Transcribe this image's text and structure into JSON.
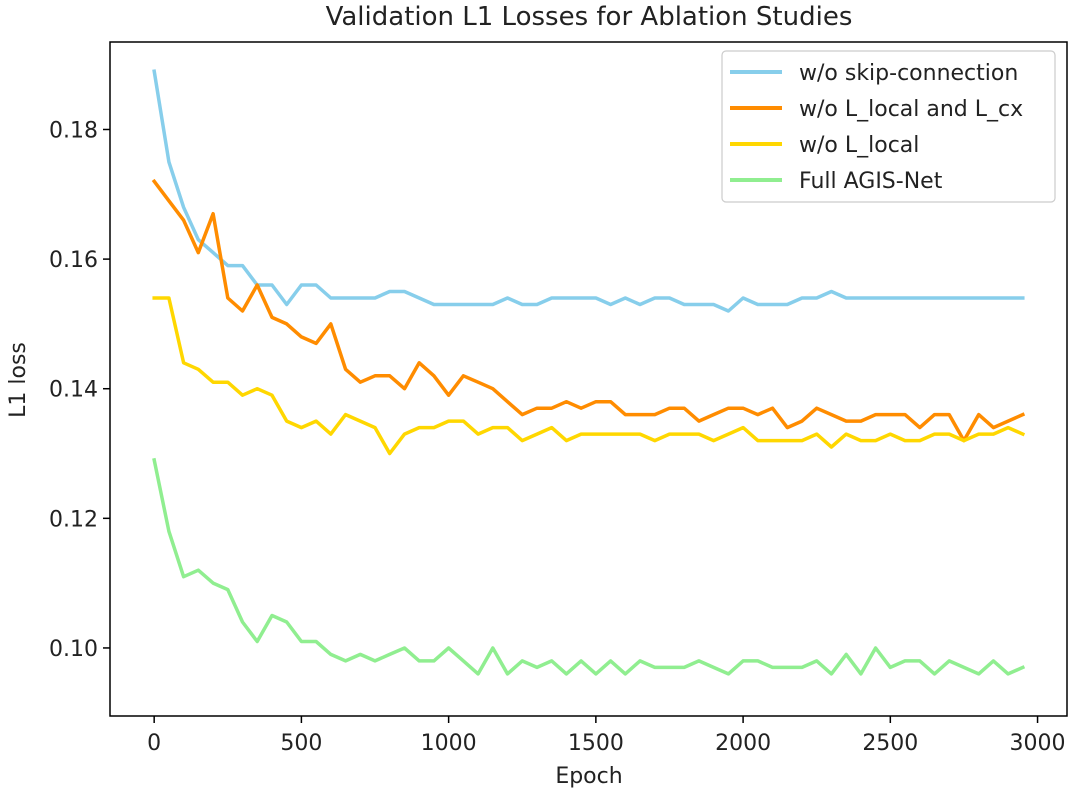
{
  "chart_data": {
    "type": "line",
    "title": "Validation L1 Losses for Ablation Studies",
    "xlabel": "Epoch",
    "ylabel": "L1 loss",
    "xlim": [
      -150,
      3100
    ],
    "ylim": [
      0.0895,
      0.1935
    ],
    "xticks": [
      0,
      500,
      1000,
      1500,
      2000,
      2500,
      3000
    ],
    "xtick_labels": [
      "0",
      "500",
      "1000",
      "1500",
      "2000",
      "2500",
      "3000"
    ],
    "yticks": [
      0.1,
      0.12,
      0.14,
      0.16,
      0.18
    ],
    "ytick_labels": [
      "0.10",
      "0.12",
      "0.14",
      "0.16",
      "0.18"
    ],
    "grid": false,
    "legend_position": "top-right",
    "x": [
      0,
      50,
      100,
      150,
      200,
      250,
      300,
      350,
      400,
      450,
      500,
      550,
      600,
      650,
      700,
      750,
      800,
      850,
      900,
      950,
      1000,
      1050,
      1100,
      1150,
      1200,
      1250,
      1300,
      1350,
      1400,
      1450,
      1500,
      1550,
      1600,
      1650,
      1700,
      1750,
      1800,
      1850,
      1900,
      1950,
      2000,
      2050,
      2100,
      2150,
      2200,
      2250,
      2300,
      2350,
      2400,
      2450,
      2500,
      2550,
      2600,
      2650,
      2700,
      2750,
      2800,
      2850,
      2900,
      2950
    ],
    "series": [
      {
        "name": "w/o skip-connection",
        "color": "#87ceeb",
        "values": [
          0.189,
          0.175,
          0.168,
          0.163,
          0.161,
          0.159,
          0.159,
          0.156,
          0.156,
          0.153,
          0.156,
          0.156,
          0.154,
          0.154,
          0.154,
          0.154,
          0.155,
          0.155,
          0.154,
          0.153,
          0.153,
          0.153,
          0.153,
          0.153,
          0.154,
          0.153,
          0.153,
          0.154,
          0.154,
          0.154,
          0.154,
          0.153,
          0.154,
          0.153,
          0.154,
          0.154,
          0.153,
          0.153,
          0.153,
          0.152,
          0.154,
          0.153,
          0.153,
          0.153,
          0.154,
          0.154,
          0.155,
          0.154,
          0.154,
          0.154,
          0.154,
          0.154,
          0.154,
          0.154,
          0.154,
          0.154,
          0.154,
          0.154,
          0.154,
          0.154
        ]
      },
      {
        "name": "w/o L_local and L_cx",
        "color": "#ff8c00",
        "values": [
          0.172,
          0.169,
          0.166,
          0.161,
          0.167,
          0.154,
          0.152,
          0.156,
          0.151,
          0.15,
          0.148,
          0.147,
          0.15,
          0.143,
          0.141,
          0.142,
          0.142,
          0.14,
          0.144,
          0.142,
          0.139,
          0.142,
          0.141,
          0.14,
          0.138,
          0.136,
          0.137,
          0.137,
          0.138,
          0.137,
          0.138,
          0.138,
          0.136,
          0.136,
          0.136,
          0.137,
          0.137,
          0.135,
          0.136,
          0.137,
          0.137,
          0.136,
          0.137,
          0.134,
          0.135,
          0.137,
          0.136,
          0.135,
          0.135,
          0.136,
          0.136,
          0.136,
          0.134,
          0.136,
          0.136,
          0.132,
          0.136,
          0.134,
          0.135,
          0.136
        ]
      },
      {
        "name": "w/o L_local",
        "color": "#ffd700",
        "values": [
          0.154,
          0.154,
          0.144,
          0.143,
          0.141,
          0.141,
          0.139,
          0.14,
          0.139,
          0.135,
          0.134,
          0.135,
          0.133,
          0.136,
          0.135,
          0.134,
          0.13,
          0.133,
          0.134,
          0.134,
          0.135,
          0.135,
          0.133,
          0.134,
          0.134,
          0.132,
          0.133,
          0.134,
          0.132,
          0.133,
          0.133,
          0.133,
          0.133,
          0.133,
          0.132,
          0.133,
          0.133,
          0.133,
          0.132,
          0.133,
          0.134,
          0.132,
          0.132,
          0.132,
          0.132,
          0.133,
          0.131,
          0.133,
          0.132,
          0.132,
          0.133,
          0.132,
          0.132,
          0.133,
          0.133,
          0.132,
          0.133,
          0.133,
          0.134,
          0.133
        ]
      },
      {
        "name": "Full AGIS-Net",
        "color": "#90ee90",
        "values": [
          0.129,
          0.118,
          0.111,
          0.112,
          0.11,
          0.109,
          0.104,
          0.101,
          0.105,
          0.104,
          0.101,
          0.101,
          0.099,
          0.098,
          0.099,
          0.098,
          0.099,
          0.1,
          0.098,
          0.098,
          0.1,
          0.098,
          0.096,
          0.1,
          0.096,
          0.098,
          0.097,
          0.098,
          0.096,
          0.098,
          0.096,
          0.098,
          0.096,
          0.098,
          0.097,
          0.097,
          0.097,
          0.098,
          0.097,
          0.096,
          0.098,
          0.098,
          0.097,
          0.097,
          0.097,
          0.098,
          0.096,
          0.099,
          0.096,
          0.1,
          0.097,
          0.098,
          0.098,
          0.096,
          0.098,
          0.097,
          0.096,
          0.098,
          0.096,
          0.097
        ]
      }
    ]
  }
}
